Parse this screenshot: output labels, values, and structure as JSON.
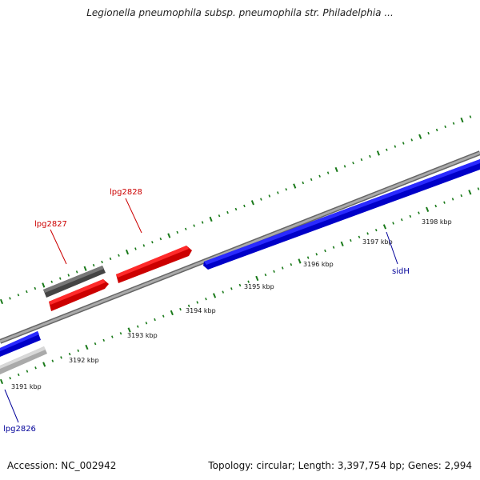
{
  "title": "Legionella pneumophila subsp. pneumophila str. Philadelphia ...",
  "footer": {
    "accession": "Accession: NC_002942",
    "summary": "Topology: circular; Length: 3,397,754 bp; Genes: 2,994"
  },
  "colors": {
    "backbone": "#8a8a8a",
    "forward_gene": "#ff0000",
    "reverse_gene": "#0000ff",
    "gray_gene": "#666666",
    "light_gene": "#c8c8c8",
    "tick": "#1a7a1a",
    "forward_label": "#cc0000",
    "reverse_label": "#000099"
  },
  "scale_ticks": [
    {
      "label": "3191 kbp"
    },
    {
      "label": "3192 kbp"
    },
    {
      "label": "3193 kbp"
    },
    {
      "label": "3194 kbp"
    },
    {
      "label": "3195 kbp"
    },
    {
      "label": "3196 kbp"
    },
    {
      "label": "3197 kbp"
    },
    {
      "label": "3198 kbp"
    }
  ],
  "genes": [
    {
      "name": "lpg2827",
      "strand": "forward",
      "color": "gray"
    },
    {
      "name": "lpg2828",
      "strand": "forward",
      "color": "red"
    },
    {
      "name": "",
      "strand": "forward",
      "color": "red"
    },
    {
      "name": "sidH",
      "strand": "reverse",
      "color": "blue"
    },
    {
      "name": "lpg2826",
      "strand": "reverse",
      "color": "blue"
    },
    {
      "name": "",
      "strand": "reverse",
      "color": "light"
    }
  ]
}
